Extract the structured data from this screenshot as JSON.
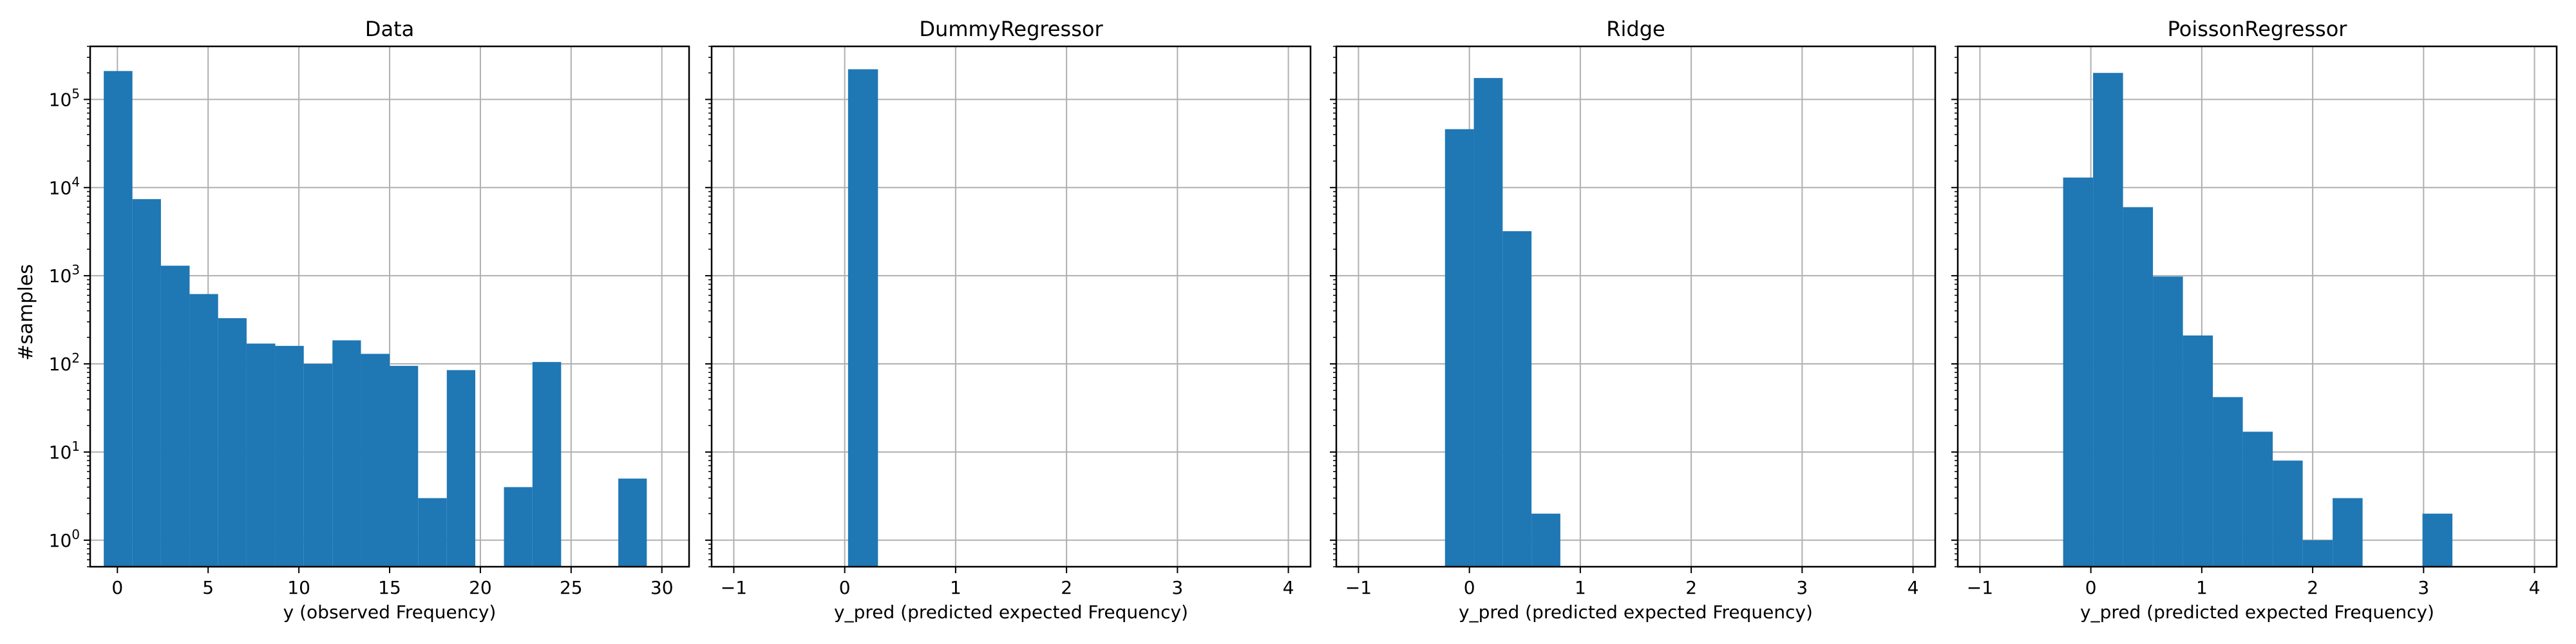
{
  "figure": {
    "ylabel": "#samples"
  },
  "chart_data": [
    {
      "type": "bar",
      "title": "Data",
      "xlabel": "y (observed Frequency)",
      "ylabel": "#samples",
      "yscale": "log",
      "xlim": [
        -1.5,
        31.5
      ],
      "ylim": [
        0.5,
        400000
      ],
      "xticks": [
        0,
        5,
        10,
        15,
        20,
        25,
        30
      ],
      "grid": true,
      "color": "#1f77b4",
      "bins": [
        {
          "x0": -0.75,
          "x1": 0.83,
          "count": 210000
        },
        {
          "x0": 0.83,
          "x1": 2.4,
          "count": 7400
        },
        {
          "x0": 2.4,
          "x1": 3.98,
          "count": 1300
        },
        {
          "x0": 3.98,
          "x1": 5.55,
          "count": 620
        },
        {
          "x0": 5.55,
          "x1": 7.12,
          "count": 330
        },
        {
          "x0": 7.12,
          "x1": 8.7,
          "count": 170
        },
        {
          "x0": 8.7,
          "x1": 10.27,
          "count": 160
        },
        {
          "x0": 10.27,
          "x1": 11.85,
          "count": 100
        },
        {
          "x0": 11.85,
          "x1": 13.42,
          "count": 185
        },
        {
          "x0": 13.42,
          "x1": 15.0,
          "count": 130
        },
        {
          "x0": 15.0,
          "x1": 16.57,
          "count": 95
        },
        {
          "x0": 16.57,
          "x1": 18.15,
          "count": 3
        },
        {
          "x0": 18.15,
          "x1": 19.72,
          "count": 85
        },
        {
          "x0": 21.3,
          "x1": 22.87,
          "count": 4
        },
        {
          "x0": 22.87,
          "x1": 24.45,
          "count": 105
        },
        {
          "x0": 27.6,
          "x1": 29.17,
          "count": 5
        }
      ]
    },
    {
      "type": "bar",
      "title": "DummyRegressor",
      "xlabel": "y_pred (predicted expected Frequency)",
      "yscale": "log",
      "xlim": [
        -1.2,
        4.2
      ],
      "ylim": [
        0.5,
        400000
      ],
      "xticks": [
        -1,
        0,
        1,
        2,
        3,
        4
      ],
      "grid": true,
      "color": "#1f77b4",
      "bins": [
        {
          "x0": 0.03,
          "x1": 0.3,
          "count": 220000
        }
      ]
    },
    {
      "type": "bar",
      "title": "Ridge",
      "xlabel": "y_pred (predicted expected Frequency)",
      "yscale": "log",
      "xlim": [
        -1.2,
        4.2
      ],
      "ylim": [
        0.5,
        400000
      ],
      "xticks": [
        -1,
        0,
        1,
        2,
        3,
        4
      ],
      "grid": true,
      "color": "#1f77b4",
      "bins": [
        {
          "x0": -0.22,
          "x1": 0.04,
          "count": 46000
        },
        {
          "x0": 0.04,
          "x1": 0.3,
          "count": 175000
        },
        {
          "x0": 0.3,
          "x1": 0.56,
          "count": 3200
        },
        {
          "x0": 0.56,
          "x1": 0.82,
          "count": 2
        }
      ]
    },
    {
      "type": "bar",
      "title": "PoissonRegressor",
      "xlabel": "y_pred (predicted expected Frequency)",
      "yscale": "log",
      "xlim": [
        -1.2,
        4.2
      ],
      "ylim": [
        0.5,
        400000
      ],
      "xticks": [
        -1,
        0,
        1,
        2,
        3,
        4
      ],
      "grid": true,
      "color": "#1f77b4",
      "bins": [
        {
          "x0": -0.25,
          "x1": 0.02,
          "count": 13000
        },
        {
          "x0": 0.02,
          "x1": 0.29,
          "count": 200000
        },
        {
          "x0": 0.29,
          "x1": 0.56,
          "count": 6000
        },
        {
          "x0": 0.56,
          "x1": 0.83,
          "count": 980
        },
        {
          "x0": 0.83,
          "x1": 1.1,
          "count": 210
        },
        {
          "x0": 1.1,
          "x1": 1.37,
          "count": 42
        },
        {
          "x0": 1.37,
          "x1": 1.64,
          "count": 17
        },
        {
          "x0": 1.64,
          "x1": 1.91,
          "count": 8
        },
        {
          "x0": 1.91,
          "x1": 2.18,
          "count": 1
        },
        {
          "x0": 2.18,
          "x1": 2.45,
          "count": 3
        },
        {
          "x0": 2.99,
          "x1": 3.26,
          "count": 2
        }
      ]
    }
  ]
}
